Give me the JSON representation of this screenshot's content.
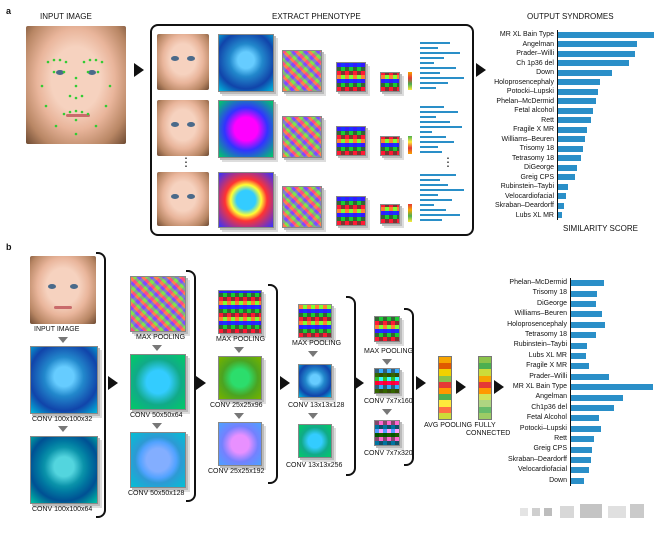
{
  "panel_a": {
    "label": "a",
    "input_header": "INPUT IMAGE",
    "extract_header": "EXTRACT PHENOTYPE",
    "output_header": "OUTPUT SYNDROMES",
    "score_label": "SIMILARITY SCORE",
    "ellipsis": "⋮",
    "syndromes": [
      {
        "name": "MR XL Bain Type",
        "score": 1.0
      },
      {
        "name": "Angelman",
        "score": 0.82
      },
      {
        "name": "Prader–Willi",
        "score": 0.8
      },
      {
        "name": "Ch 1p36 del",
        "score": 0.74
      },
      {
        "name": "Down",
        "score": 0.56
      },
      {
        "name": "Holoprosencephaly",
        "score": 0.44
      },
      {
        "name": "Potocki–Lupski",
        "score": 0.42
      },
      {
        "name": "Phelan–McDermid",
        "score": 0.4
      },
      {
        "name": "Fetal alcohol",
        "score": 0.36
      },
      {
        "name": "Rett",
        "score": 0.34
      },
      {
        "name": "Fragile X MR",
        "score": 0.3
      },
      {
        "name": "Williams–Beuren",
        "score": 0.28
      },
      {
        "name": "Trisomy 18",
        "score": 0.26
      },
      {
        "name": "Tetrasomy 18",
        "score": 0.24
      },
      {
        "name": "DiGeorge",
        "score": 0.2
      },
      {
        "name": "Greig CPS",
        "score": 0.18
      },
      {
        "name": "Rubinstein–Taybi",
        "score": 0.1
      },
      {
        "name": "Velocardiofacial",
        "score": 0.08
      },
      {
        "name": "Skraban–Deardorff",
        "score": 0.06
      },
      {
        "name": "Lubs XL MR",
        "score": 0.04
      }
    ]
  },
  "panel_b": {
    "label": "b",
    "input_label": "INPUT IMAGE",
    "layers": {
      "conv1a": "CONV 100x100x32",
      "conv1b": "CONV 100x100x64",
      "pool1": "MAX POOLING",
      "conv2a": "CONV 50x50x64",
      "conv2b": "CONV 50x50x128",
      "pool2": "MAX POOLING",
      "conv3a": "CONV 25x25x96",
      "conv3b": "CONV 25x25x192",
      "pool3": "MAX POOLING",
      "conv4a": "CONV 13x13x128",
      "conv4b": "CONV 13x13x256",
      "pool4": "MAX POOLING",
      "conv5a": "CONV 7x7x160",
      "conv5b": "CONV 7x7x320",
      "avg_pool": "AVG POOLING",
      "fc": "FULLY CONNECTED"
    },
    "syndromes": [
      {
        "name": "Phelan–McDermid",
        "score": 0.4
      },
      {
        "name": "Trisomy 18",
        "score": 0.32
      },
      {
        "name": "DiGeorge",
        "score": 0.3
      },
      {
        "name": "Williams–Beuren",
        "score": 0.38
      },
      {
        "name": "Holoprosencephaly",
        "score": 0.42
      },
      {
        "name": "Tetrasomy 18",
        "score": 0.3
      },
      {
        "name": "Rubinstein–Taybi",
        "score": 0.2
      },
      {
        "name": "Lubs XL MR",
        "score": 0.18
      },
      {
        "name": "Fragile X MR",
        "score": 0.22
      },
      {
        "name": "Prader–Willi",
        "score": 0.46
      },
      {
        "name": "MR XL Bain Type",
        "score": 1.0
      },
      {
        "name": "Angelman",
        "score": 0.64
      },
      {
        "name": "Ch1p36 del",
        "score": 0.52
      },
      {
        "name": "Fetal Alcohol",
        "score": 0.34
      },
      {
        "name": "Potocki–Lupski",
        "score": 0.36
      },
      {
        "name": "Rett",
        "score": 0.28
      },
      {
        "name": "Greig CPS",
        "score": 0.26
      },
      {
        "name": "Skraban–Deardorff",
        "score": 0.24
      },
      {
        "name": "Velocardiofacial",
        "score": 0.22
      },
      {
        "name": "Down",
        "score": 0.16
      }
    ]
  },
  "colors": {
    "bar": "#2a8fc8",
    "avg_strip": [
      "#f7a400",
      "#e05a00",
      "#f2d100",
      "#8bc34a",
      "#e53935",
      "#ff9800",
      "#4caf50",
      "#ffeb3b",
      "#ff7043",
      "#cddc39"
    ],
    "fc_strip": [
      "#8bc34a",
      "#4caf50",
      "#cddc39",
      "#f7a400",
      "#e53935",
      "#ff9800",
      "#d4e157",
      "#aed581",
      "#66bb6a",
      "#9ccc65"
    ]
  }
}
